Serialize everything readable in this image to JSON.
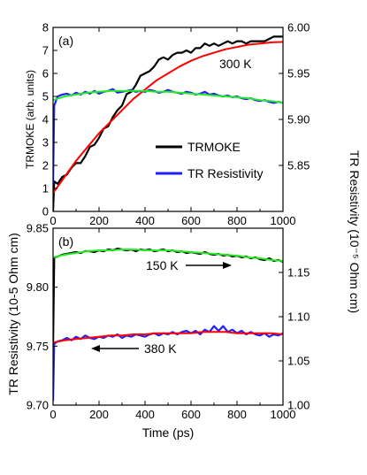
{
  "chart_data": [
    {
      "type": "line",
      "panel_label": "(a)",
      "xlim": [
        0,
        1000
      ],
      "xticks": [
        0,
        200,
        400,
        600,
        800,
        1000
      ],
      "ylabel_left": "TRMOKE (arb. units)",
      "ylim_left": [
        0,
        8
      ],
      "yticks_left": [
        0,
        1,
        2,
        3,
        4,
        5,
        6,
        7,
        8
      ],
      "ylabel_right": "TR Resistivity (10⁻⁵ Ohm cm)",
      "ylim_right": [
        5.8,
        6.0
      ],
      "yticks_right": [
        5.85,
        5.9,
        5.95,
        6.0
      ],
      "annotation": "300 K",
      "legend": {
        "position": "middle-right",
        "entries": [
          "TRMOKE",
          "TR Resistivity"
        ]
      },
      "colors": {
        "trmoke": "#000000",
        "resistivity": "#1f1fff",
        "fit_trmoke": "#ff0000",
        "fit_resistivity": "#22ee22"
      },
      "series": [
        {
          "name": "TRMOKE",
          "axis": "left",
          "x": [
            -10,
            0,
            5,
            20,
            40,
            60,
            80,
            100,
            120,
            140,
            160,
            180,
            200,
            220,
            240,
            260,
            280,
            300,
            320,
            340,
            360,
            380,
            400,
            420,
            440,
            460,
            480,
            500,
            520,
            540,
            560,
            580,
            600,
            620,
            640,
            660,
            680,
            700,
            720,
            740,
            760,
            780,
            800,
            820,
            840,
            860,
            880,
            900,
            920,
            940,
            960,
            980,
            1000
          ],
          "y": [
            0.0,
            0.0,
            1.3,
            1.2,
            1.5,
            1.6,
            1.9,
            2.1,
            2.1,
            2.4,
            2.8,
            2.9,
            3.2,
            3.6,
            3.7,
            4.1,
            4.4,
            4.6,
            5.1,
            5.2,
            5.5,
            5.9,
            6.0,
            6.1,
            6.3,
            6.6,
            6.7,
            6.6,
            6.8,
            6.9,
            6.9,
            7.0,
            6.9,
            7.1,
            7.1,
            7.3,
            7.2,
            7.3,
            7.2,
            7.3,
            7.4,
            7.3,
            7.4,
            7.4,
            7.3,
            7.4,
            7.4,
            7.4,
            7.4,
            7.5,
            7.6,
            7.6,
            7.6
          ]
        },
        {
          "name": "TR Resistivity",
          "axis": "right",
          "x": [
            -10,
            0,
            5,
            20,
            40,
            60,
            80,
            100,
            120,
            140,
            160,
            180,
            200,
            220,
            240,
            260,
            280,
            300,
            320,
            340,
            360,
            380,
            400,
            420,
            440,
            460,
            480,
            500,
            520,
            540,
            560,
            580,
            600,
            620,
            640,
            660,
            680,
            700,
            720,
            740,
            760,
            780,
            800,
            820,
            840,
            860,
            880,
            900,
            920,
            940,
            960,
            980,
            1000
          ],
          "y": [
            5.83,
            5.83,
            5.915,
            5.925,
            5.927,
            5.928,
            5.926,
            5.929,
            5.927,
            5.93,
            5.928,
            5.931,
            5.928,
            5.93,
            5.931,
            5.933,
            5.929,
            5.93,
            5.931,
            5.932,
            5.93,
            5.931,
            5.93,
            5.932,
            5.931,
            5.929,
            5.93,
            5.932,
            5.93,
            5.929,
            5.928,
            5.93,
            5.929,
            5.927,
            5.928,
            5.93,
            5.927,
            5.928,
            5.926,
            5.925,
            5.926,
            5.924,
            5.925,
            5.923,
            5.922,
            5.923,
            5.921,
            5.92,
            5.921,
            5.919,
            5.918,
            5.919,
            5.918
          ]
        },
        {
          "axis": "left",
          "x": [
            0,
            50,
            100,
            150,
            200,
            250,
            300,
            350,
            400,
            450,
            500,
            550,
            600,
            650,
            700,
            750,
            800,
            850,
            900,
            950,
            1000
          ],
          "y": [
            0.8,
            1.5,
            2.2,
            2.8,
            3.4,
            3.9,
            4.4,
            4.9,
            5.3,
            5.7,
            6.0,
            6.3,
            6.55,
            6.75,
            6.9,
            7.05,
            7.15,
            7.25,
            7.3,
            7.35,
            7.37
          ]
        },
        {
          "axis": "right",
          "x": [
            0,
            50,
            100,
            150,
            200,
            250,
            300,
            350,
            400,
            450,
            500,
            550,
            600,
            650,
            700,
            750,
            800,
            850,
            900,
            950,
            1000
          ],
          "y": [
            5.921,
            5.925,
            5.927,
            5.929,
            5.93,
            5.931,
            5.931,
            5.931,
            5.931,
            5.93,
            5.93,
            5.929,
            5.928,
            5.927,
            5.926,
            5.925,
            5.924,
            5.923,
            5.921,
            5.92,
            5.918
          ]
        }
      ]
    },
    {
      "type": "line",
      "panel_label": "(b)",
      "xlabel": "Time (ps)",
      "xlim": [
        0,
        1000
      ],
      "xticks": [
        0,
        200,
        400,
        600,
        800,
        1000
      ],
      "ylabel_left": "TR Resistivity (10-5 Ohm cm)",
      "ylim_left": [
        9.7,
        9.85
      ],
      "yticks_left": [
        9.7,
        9.75,
        9.8,
        9.85
      ],
      "ylabel_right": "TR Resistivity (10⁻⁵ Ohm cm)",
      "ylim_right": [
        1.0,
        1.2
      ],
      "yticks_right": [
        1.0,
        1.05,
        1.1,
        1.15
      ],
      "annotations": [
        {
          "text": "150 K",
          "arrow": "right"
        },
        {
          "text": "380 K",
          "arrow": "left"
        }
      ],
      "colors": {
        "150K": "#000000",
        "380K": "#1f1fff",
        "fit_150K": "#22ee22",
        "fit_380K": "#ff0000"
      },
      "series": [
        {
          "name": "150 K",
          "axis": "right",
          "x": [
            -10,
            0,
            5,
            20,
            40,
            60,
            80,
            100,
            120,
            140,
            160,
            180,
            200,
            220,
            240,
            260,
            280,
            300,
            320,
            340,
            360,
            380,
            400,
            420,
            440,
            460,
            480,
            500,
            520,
            540,
            560,
            580,
            600,
            620,
            640,
            660,
            680,
            700,
            720,
            740,
            760,
            780,
            800,
            820,
            840,
            860,
            880,
            900,
            920,
            940,
            960,
            980,
            1000
          ],
          "y": [
            1.065,
            1.065,
            1.167,
            1.168,
            1.17,
            1.171,
            1.172,
            1.173,
            1.172,
            1.174,
            1.174,
            1.173,
            1.175,
            1.174,
            1.176,
            1.175,
            1.177,
            1.176,
            1.175,
            1.176,
            1.174,
            1.176,
            1.175,
            1.176,
            1.174,
            1.175,
            1.176,
            1.174,
            1.175,
            1.173,
            1.174,
            1.172,
            1.173,
            1.172,
            1.171,
            1.173,
            1.171,
            1.17,
            1.171,
            1.169,
            1.17,
            1.168,
            1.169,
            1.167,
            1.168,
            1.166,
            1.167,
            1.165,
            1.164,
            1.166,
            1.163,
            1.164,
            1.162
          ]
        },
        {
          "name": "380 K",
          "axis": "left",
          "x": [
            -10,
            0,
            5,
            20,
            40,
            60,
            80,
            100,
            120,
            140,
            160,
            180,
            200,
            220,
            240,
            260,
            280,
            300,
            320,
            340,
            360,
            380,
            400,
            420,
            440,
            460,
            480,
            500,
            520,
            540,
            560,
            580,
            600,
            620,
            640,
            660,
            680,
            700,
            720,
            740,
            760,
            780,
            800,
            820,
            840,
            860,
            880,
            900,
            920,
            940,
            960,
            980,
            1000
          ],
          "y": [
            9.704,
            9.704,
            9.752,
            9.754,
            9.755,
            9.757,
            9.755,
            9.758,
            9.756,
            9.759,
            9.757,
            9.756,
            9.758,
            9.757,
            9.759,
            9.758,
            9.76,
            9.757,
            9.759,
            9.758,
            9.76,
            9.759,
            9.758,
            9.76,
            9.761,
            9.759,
            9.761,
            9.76,
            9.762,
            9.76,
            9.762,
            9.763,
            9.761,
            9.763,
            9.76,
            9.764,
            9.762,
            9.767,
            9.763,
            9.767,
            9.762,
            9.764,
            9.761,
            9.763,
            9.76,
            9.762,
            9.76,
            9.759,
            9.761,
            9.758,
            9.76,
            9.759,
            9.761
          ]
        },
        {
          "axis": "right",
          "x": [
            0,
            50,
            100,
            150,
            200,
            250,
            300,
            350,
            400,
            450,
            500,
            550,
            600,
            650,
            700,
            750,
            800,
            850,
            900,
            950,
            1000
          ],
          "y": [
            1.167,
            1.17,
            1.172,
            1.174,
            1.175,
            1.175,
            1.176,
            1.176,
            1.175,
            1.175,
            1.175,
            1.174,
            1.173,
            1.172,
            1.171,
            1.17,
            1.169,
            1.167,
            1.166,
            1.164,
            1.163
          ]
        },
        {
          "axis": "left",
          "x": [
            0,
            50,
            100,
            150,
            200,
            250,
            300,
            350,
            400,
            450,
            500,
            550,
            600,
            650,
            700,
            750,
            800,
            850,
            900,
            950,
            1000
          ],
          "y": [
            9.753,
            9.755,
            9.756,
            9.757,
            9.758,
            9.759,
            9.759,
            9.76,
            9.76,
            9.761,
            9.761,
            9.761,
            9.761,
            9.762,
            9.762,
            9.762,
            9.761,
            9.761,
            9.761,
            9.761,
            9.76
          ]
        }
      ]
    }
  ]
}
